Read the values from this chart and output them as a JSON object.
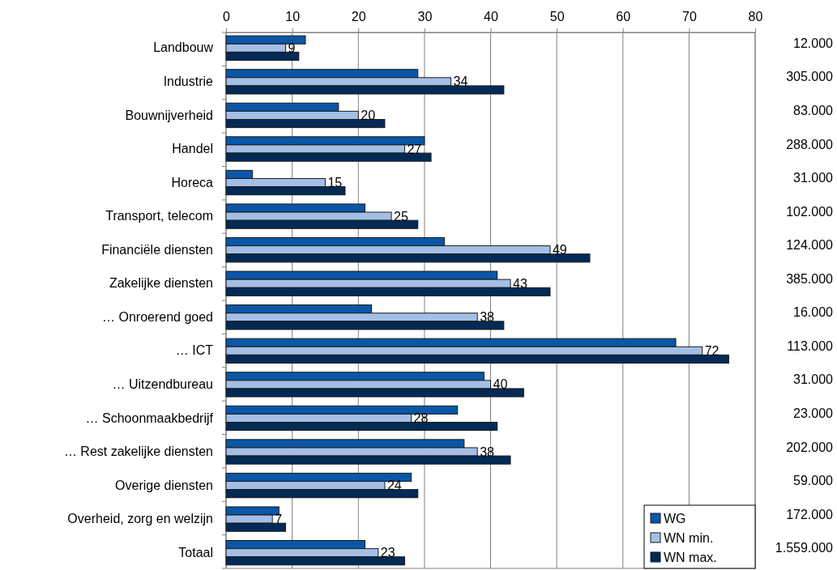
{
  "chart_data": {
    "type": "bar",
    "orientation": "horizontal",
    "categories": [
      "Landbouw",
      "Industrie",
      "Bouwnijverheid",
      "Handel",
      "Horeca",
      "Transport, telecom",
      "Financiële diensten",
      "Zakelijke diensten",
      "… Onroerend goed",
      "… ICT",
      "… Uitzendbureau",
      "… Schoonmaakbedrijf",
      "… Rest zakelijke diensten ",
      "Overige diensten",
      "Overheid, zorg en welzijn",
      "Totaal"
    ],
    "series": [
      {
        "name": "WG",
        "color": "#0b56a6",
        "values": [
          12,
          29,
          17,
          30,
          4,
          21,
          33,
          41,
          22,
          68,
          39,
          35,
          36,
          28,
          8,
          21
        ]
      },
      {
        "name": "WN min.",
        "color": "#a4bfe6",
        "values": [
          9,
          34,
          20,
          27,
          15,
          25,
          49,
          43,
          38,
          72,
          40,
          28,
          38,
          24,
          7,
          23
        ],
        "value_labels": [
          "9",
          "34",
          "20",
          "27",
          "15",
          "25",
          "49",
          "43",
          "38",
          "72",
          "40",
          "28",
          "38",
          "24",
          "7",
          "23"
        ]
      },
      {
        "name": "WN max.",
        "color": "#022a55",
        "values": [
          11,
          42,
          24,
          31,
          18,
          29,
          55,
          49,
          42,
          76,
          45,
          41,
          43,
          29,
          9,
          27
        ]
      }
    ],
    "xlim": [
      0,
      80
    ],
    "xticks": [
      0,
      10,
      20,
      30,
      40,
      50,
      60,
      70,
      80
    ],
    "grid": "x",
    "legend": "bottom right",
    "annotations": [
      "12.000",
      "305.000",
      "83.000",
      "288.000",
      "31.000",
      "102.000",
      "124.000",
      "385.000",
      "16.000",
      "113.000",
      "31.000",
      "23.000",
      "202.000",
      "59.000",
      "172.000",
      "1.559.000"
    ]
  }
}
